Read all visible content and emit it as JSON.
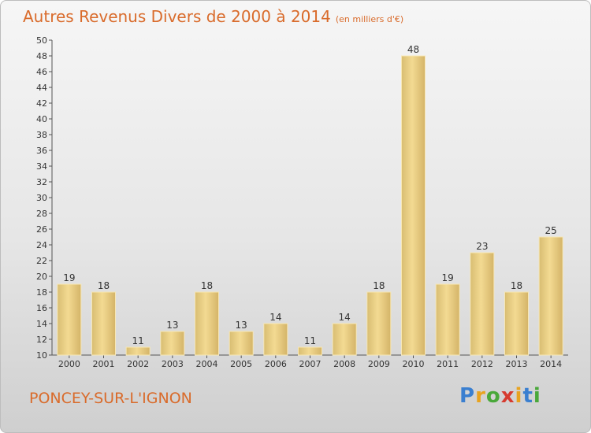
{
  "chart_data": {
    "type": "bar",
    "title": "Autres Revenus Divers de 2000 à 2014",
    "subtitle": "(en milliers d'€)",
    "categories": [
      "2000",
      "2001",
      "2002",
      "2003",
      "2004",
      "2005",
      "2006",
      "2007",
      "2008",
      "2009",
      "2010",
      "2011",
      "2012",
      "2013",
      "2014"
    ],
    "values": [
      19,
      18,
      11,
      13,
      18,
      13,
      14,
      11,
      14,
      18,
      48,
      19,
      23,
      18,
      25
    ],
    "ylim": [
      10,
      50
    ],
    "ytick_step": 2,
    "grid": false,
    "bar_color": "#e9cf84"
  },
  "footer": {
    "place": "PONCEY-SUR-L'IGNON"
  },
  "logo": {
    "letters": [
      "P",
      "r",
      "o",
      "x",
      "i",
      "t",
      "i"
    ],
    "colors": [
      "#3a7fd0",
      "#e8a31f",
      "#49a83a",
      "#d63b2f",
      "#e8a31f",
      "#3a7fd0",
      "#49a83a"
    ]
  }
}
